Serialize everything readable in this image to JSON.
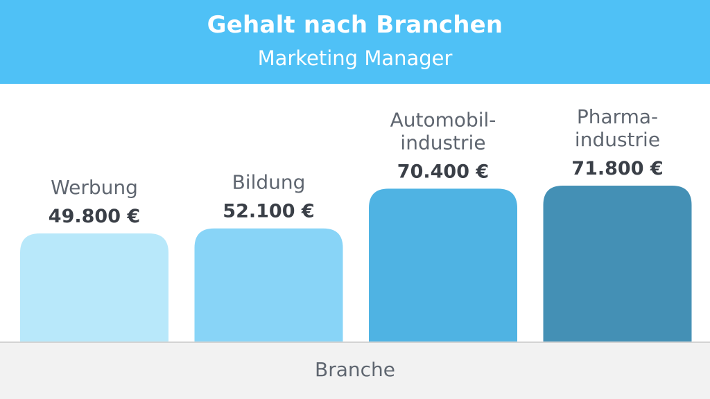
{
  "chart_data": {
    "type": "bar",
    "title": "Gehalt nach Branchen",
    "subtitle": "Marketing Manager",
    "xlabel": "Branche",
    "ylabel": "",
    "categories": [
      [
        "Werbung"
      ],
      [
        "Bildung"
      ],
      [
        "Automobil-",
        "industrie"
      ],
      [
        "Pharma-",
        "industrie"
      ]
    ],
    "values": [
      49800,
      52100,
      70400,
      71800
    ],
    "value_labels": [
      "49.800 €",
      "52.100 €",
      "70.400 €",
      "71.800 €"
    ],
    "colors": [
      "#b8e8fa",
      "#88d4f7",
      "#4fb3e3",
      "#4490b5"
    ],
    "header_color": "#4fc1f6",
    "grid": false,
    "legend": "none"
  }
}
